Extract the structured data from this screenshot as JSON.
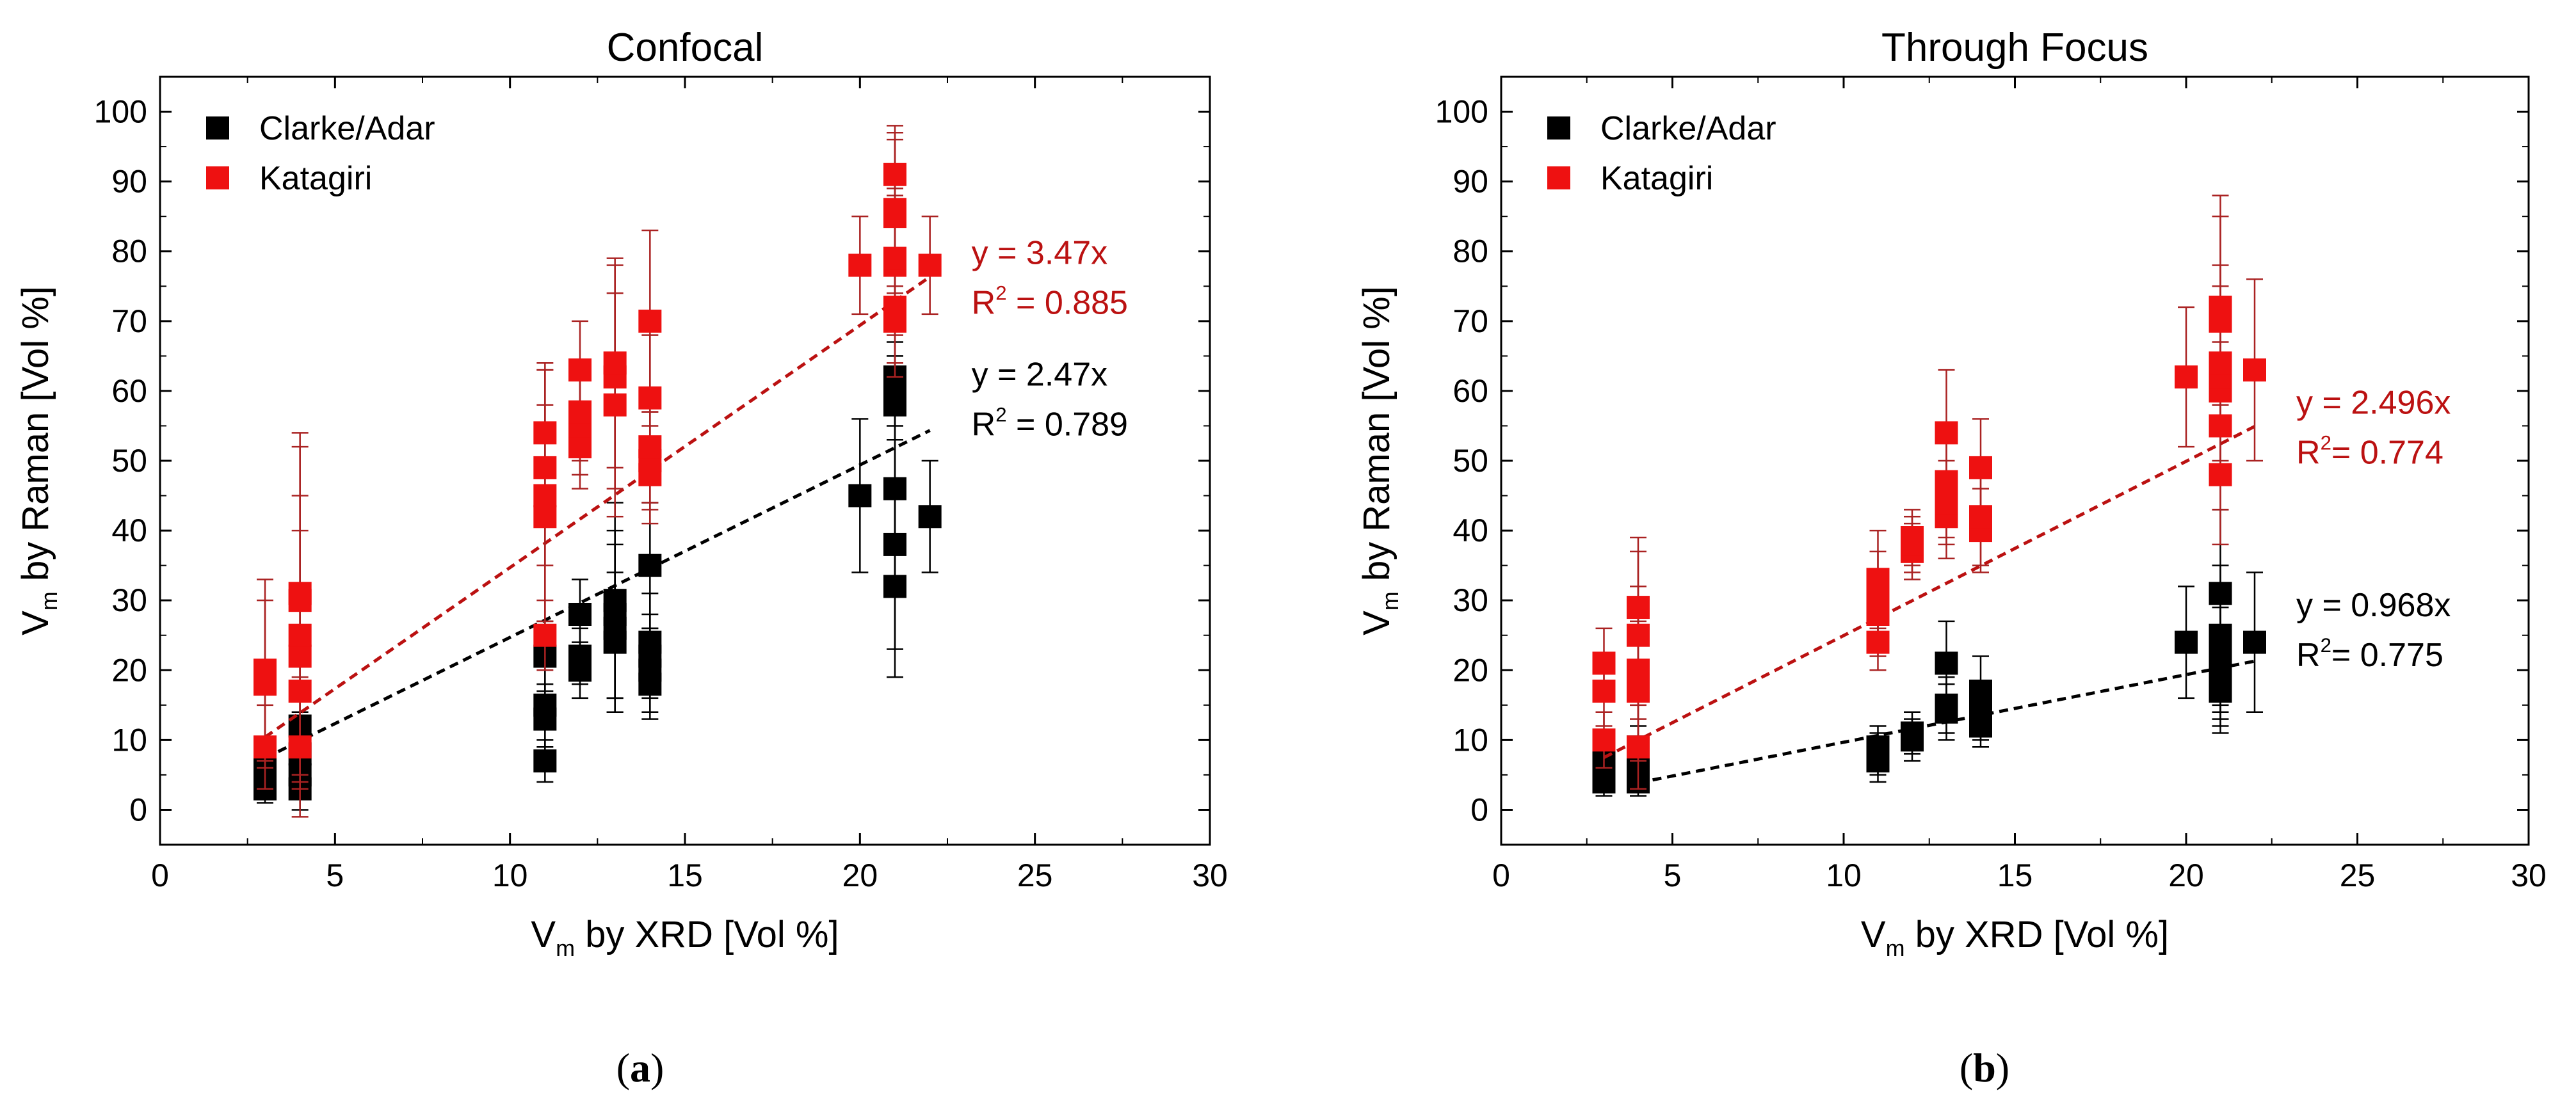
{
  "colors": {
    "clarke": "#000000",
    "katagiri": "#ee1111",
    "katagiri_fit": "#bb1111",
    "errorbar_red": "#aa2222",
    "axis": "#000000"
  },
  "chart_data": [
    {
      "type": "scatter",
      "panel": "a",
      "caption_letter": "a",
      "title": "Confocal",
      "xlabel": {
        "main": "V",
        "sub": "m",
        "rest": " by XRD [Vol %]"
      },
      "ylabel": {
        "main": "V",
        "sub": "m",
        "rest": " by Raman [Vol %]"
      },
      "xlim": [
        0,
        30
      ],
      "ylim": [
        -5,
        105
      ],
      "xticks": [
        0,
        5,
        10,
        15,
        20,
        25,
        30
      ],
      "yticks": [
        0,
        10,
        20,
        30,
        40,
        50,
        60,
        70,
        80,
        90,
        100
      ],
      "legend_position": "top-left",
      "series": [
        {
          "name": "Clarke/Adar",
          "color_key": "clarke",
          "points": [
            [
              3,
              3
            ],
            [
              3,
              5
            ],
            [
              3,
              7
            ],
            [
              4,
              3
            ],
            [
              4,
              5
            ],
            [
              4,
              8
            ],
            [
              4,
              12
            ],
            [
              11,
              7
            ],
            [
              11,
              13
            ],
            [
              11,
              15
            ],
            [
              11,
              22
            ],
            [
              12,
              20
            ],
            [
              12,
              22
            ],
            [
              12,
              28
            ],
            [
              13,
              24
            ],
            [
              13,
              26
            ],
            [
              13,
              28
            ],
            [
              13,
              30
            ],
            [
              14,
              18
            ],
            [
              14,
              20
            ],
            [
              14,
              22
            ],
            [
              14,
              24
            ],
            [
              14,
              35
            ],
            [
              20,
              45
            ],
            [
              21,
              32
            ],
            [
              21,
              38
            ],
            [
              21,
              46
            ],
            [
              21,
              58
            ],
            [
              21,
              60
            ],
            [
              21,
              62
            ],
            [
              22,
              42
            ]
          ],
          "err": [
            2,
            3,
            3,
            3,
            3,
            6,
            9,
            3,
            5,
            6,
            5,
            4,
            4,
            5,
            10,
            12,
            12,
            14,
            5,
            6,
            6,
            7,
            9,
            11,
            13,
            15,
            15,
            5,
            5,
            5,
            8
          ],
          "fit": {
            "label": "y = 2.47x",
            "r2_prefix": "R",
            "r2_exp": "2",
            "r2_value": " = 0.789",
            "slope": 2.47,
            "x_range": [
              3,
              22
            ]
          }
        },
        {
          "name": "Katagiri",
          "color_key": "katagiri",
          "points": [
            [
              3,
              9
            ],
            [
              3,
              18
            ],
            [
              3,
              20
            ],
            [
              4,
              9
            ],
            [
              4,
              17
            ],
            [
              4,
              22
            ],
            [
              4,
              25
            ],
            [
              4,
              30
            ],
            [
              4,
              31
            ],
            [
              11,
              25
            ],
            [
              11,
              42
            ],
            [
              11,
              45
            ],
            [
              11,
              49
            ],
            [
              11,
              54
            ],
            [
              12,
              52
            ],
            [
              12,
              55
            ],
            [
              12,
              57
            ],
            [
              12,
              63
            ],
            [
              13,
              58
            ],
            [
              13,
              62
            ],
            [
              13,
              64
            ],
            [
              14,
              48
            ],
            [
              14,
              50
            ],
            [
              14,
              52
            ],
            [
              14,
              59
            ],
            [
              14,
              70
            ],
            [
              20,
              78
            ],
            [
              21,
              70
            ],
            [
              21,
              72
            ],
            [
              21,
              78
            ],
            [
              21,
              79
            ],
            [
              21,
              85
            ],
            [
              21,
              86
            ],
            [
              21,
              91
            ],
            [
              22,
              78
            ]
          ],
          "err": [
            6,
            12,
            13,
            10,
            14,
            18,
            20,
            22,
            23,
            5,
            16,
            18,
            14,
            10,
            6,
            7,
            7,
            7,
            16,
            16,
            15,
            7,
            7,
            8,
            9,
            13,
            7,
            8,
            8,
            10,
            10,
            11,
            11,
            7,
            7
          ],
          "fit": {
            "label": "y = 3.47x",
            "r2_prefix": "R",
            "r2_exp": "2",
            "r2_value": " = 0.885",
            "slope": 3.47,
            "x_range": [
              3,
              22
            ]
          }
        }
      ]
    },
    {
      "type": "scatter",
      "panel": "b",
      "caption_letter": "b",
      "title": "Through Focus",
      "xlabel": {
        "main": "V",
        "sub": "m",
        "rest": " by XRD [Vol %]"
      },
      "ylabel": {
        "main": "V",
        "sub": "m",
        "rest": " by Raman [Vol %]"
      },
      "xlim": [
        0,
        30
      ],
      "ylim": [
        -5,
        105
      ],
      "xticks": [
        0,
        5,
        10,
        15,
        20,
        25,
        30
      ],
      "yticks": [
        0,
        10,
        20,
        30,
        40,
        50,
        60,
        70,
        80,
        90,
        100
      ],
      "legend_position": "top-left",
      "series": [
        {
          "name": "Clarke/Adar",
          "color_key": "clarke",
          "points": [
            [
              3,
              4
            ],
            [
              3,
              6
            ],
            [
              3,
              8
            ],
            [
              4,
              4
            ],
            [
              4,
              5
            ],
            [
              4,
              7
            ],
            [
              4,
              9
            ],
            [
              11,
              7
            ],
            [
              11,
              8
            ],
            [
              11,
              9
            ],
            [
              12,
              10
            ],
            [
              12,
              11
            ],
            [
              13,
              14
            ],
            [
              13,
              15
            ],
            [
              13,
              21
            ],
            [
              14,
              12
            ],
            [
              14,
              14
            ],
            [
              14,
              17
            ],
            [
              20,
              24
            ],
            [
              21,
              17
            ],
            [
              21,
              19
            ],
            [
              21,
              21
            ],
            [
              21,
              23
            ],
            [
              21,
              25
            ],
            [
              21,
              31
            ],
            [
              22,
              24
            ]
          ],
          "err": [
            2,
            2,
            3,
            2,
            2,
            3,
            3,
            3,
            3,
            3,
            3,
            3,
            4,
            4,
            6,
            3,
            4,
            5,
            8,
            6,
            7,
            8,
            9,
            10,
            12,
            10
          ],
          "fit": {
            "label": "y = 0.968x",
            "r2_prefix": "R",
            "r2_exp": "2",
            "r2_value": "= 0.775",
            "slope": 0.968,
            "x_range": [
              4,
              22
            ]
          }
        },
        {
          "name": "Katagiri",
          "color_key": "katagiri",
          "points": [
            [
              3,
              10
            ],
            [
              3,
              17
            ],
            [
              3,
              21
            ],
            [
              4,
              9
            ],
            [
              4,
              17
            ],
            [
              4,
              20
            ],
            [
              4,
              25
            ],
            [
              4,
              29
            ],
            [
              11,
              24
            ],
            [
              11,
              28
            ],
            [
              11,
              31
            ],
            [
              11,
              33
            ],
            [
              12,
              37
            ],
            [
              12,
              38
            ],
            [
              12,
              39
            ],
            [
              13,
              42
            ],
            [
              13,
              44
            ],
            [
              13,
              47
            ],
            [
              13,
              54
            ],
            [
              14,
              40
            ],
            [
              14,
              42
            ],
            [
              14,
              49
            ],
            [
              20,
              62
            ],
            [
              21,
              48
            ],
            [
              21,
              55
            ],
            [
              21,
              60
            ],
            [
              21,
              62
            ],
            [
              21,
              64
            ],
            [
              21,
              70
            ],
            [
              21,
              72
            ],
            [
              22,
              63
            ]
          ],
          "err": [
            4,
            5,
            5,
            6,
            10,
            12,
            12,
            10,
            4,
            6,
            6,
            7,
            4,
            4,
            4,
            6,
            6,
            8,
            9,
            6,
            7,
            7,
            10,
            10,
            12,
            12,
            13,
            14,
            15,
            16,
            13
          ],
          "fit": {
            "label": "y = 2.496x",
            "r2_prefix": "R",
            "r2_exp": "2",
            "r2_value": "= 0.774",
            "slope": 2.496,
            "x_range": [
              3,
              22
            ]
          }
        }
      ]
    }
  ]
}
